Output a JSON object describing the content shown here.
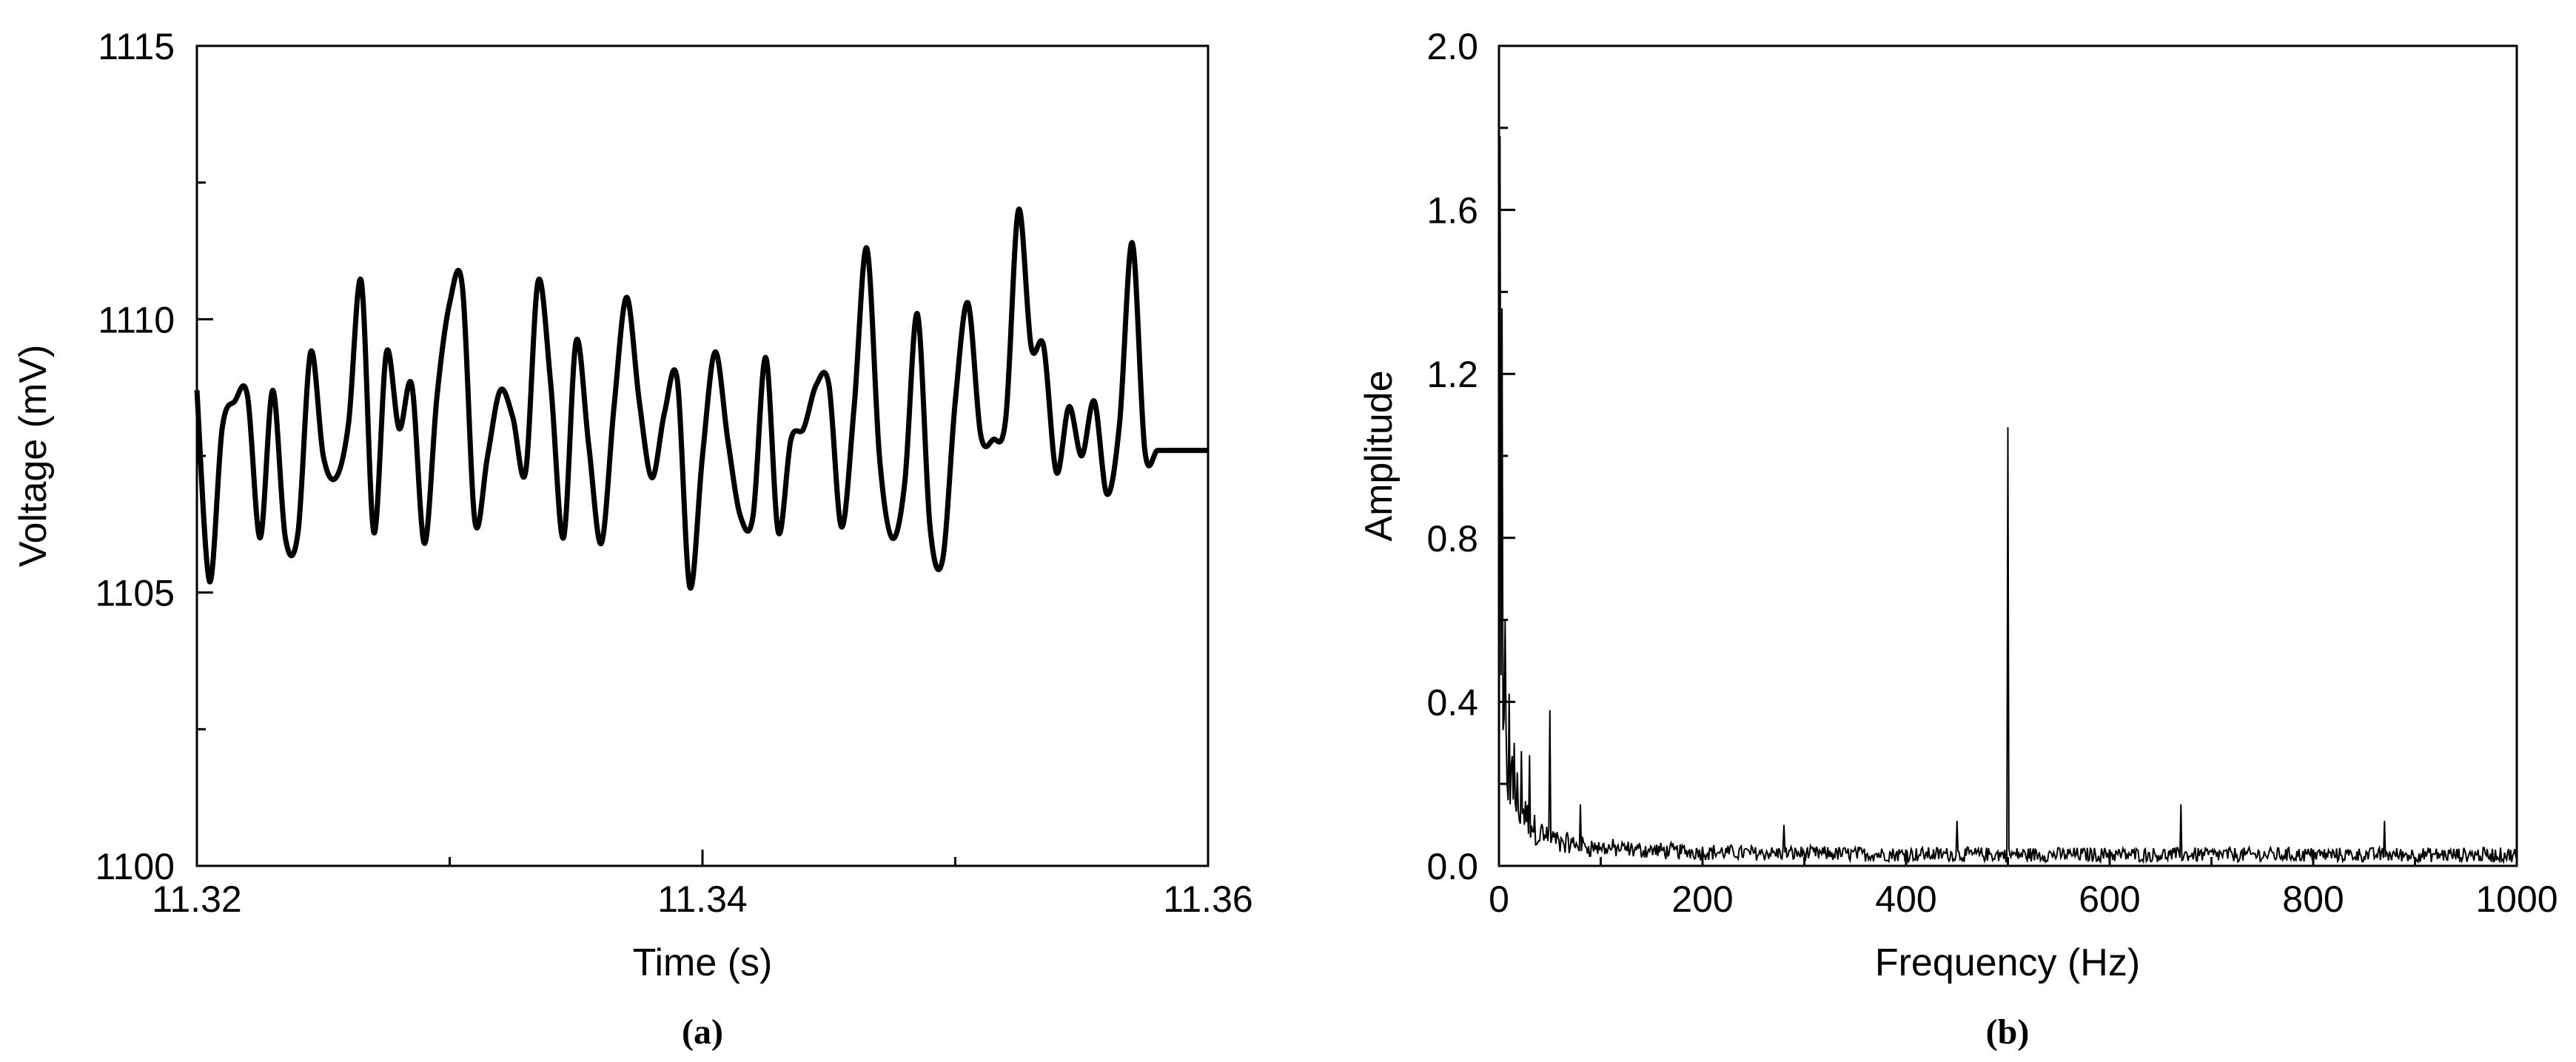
{
  "chart_data": [
    {
      "type": "line",
      "caption": "(a)",
      "xlabel": "Time (s)",
      "ylabel": "Voltage (mV)",
      "xlim": [
        11.32,
        11.36
      ],
      "ylim": [
        1100,
        1115
      ],
      "x_ticks": [
        "11.32",
        "11.34",
        "11.36"
      ],
      "y_ticks": [
        "1100",
        "1105",
        "1110",
        "1115"
      ],
      "line_color": "#000000",
      "x": [
        11.32,
        11.3205,
        11.321,
        11.3215,
        11.322,
        11.3225,
        11.323,
        11.3235,
        11.324,
        11.3245,
        11.325,
        11.3255,
        11.326,
        11.3265,
        11.327,
        11.3275,
        11.328,
        11.3285,
        11.329,
        11.3295,
        11.33,
        11.3305,
        11.331,
        11.3315,
        11.332,
        11.3325,
        11.333,
        11.3335,
        11.334,
        11.3345,
        11.335,
        11.3355,
        11.336,
        11.3365,
        11.337,
        11.3375,
        11.338,
        11.3385,
        11.339,
        11.3395,
        11.34,
        11.3405,
        11.341,
        11.3415,
        11.342,
        11.3425,
        11.343,
        11.3435,
        11.344,
        11.3445,
        11.345,
        11.3455,
        11.346,
        11.3465,
        11.347,
        11.3475,
        11.348,
        11.3485,
        11.349,
        11.3495,
        11.35,
        11.3505,
        11.351,
        11.3515,
        11.352,
        11.3525,
        11.353,
        11.3535,
        11.354,
        11.3545,
        11.355,
        11.3555,
        11.356,
        11.3565,
        11.357,
        11.3575,
        11.358,
        11.3585,
        11.359,
        11.3595,
        11.36
      ],
      "y": [
        1108.7,
        1105.2,
        1108.0,
        1108.5,
        1108.6,
        1106.0,
        1108.7,
        1106.0,
        1106.1,
        1109.4,
        1107.5,
        1107.1,
        1108.1,
        1110.7,
        1106.1,
        1109.4,
        1108.0,
        1108.8,
        1105.9,
        1108.6,
        1110.3,
        1110.6,
        1106.3,
        1107.5,
        1108.7,
        1108.2,
        1107.2,
        1110.7,
        1108.8,
        1106.0,
        1109.6,
        1107.7,
        1105.9,
        1108.4,
        1110.4,
        1108.5,
        1107.1,
        1108.3,
        1108.9,
        1105.1,
        1107.5,
        1109.4,
        1107.8,
        1106.4,
        1106.4,
        1109.3,
        1106.1,
        1107.8,
        1108.0,
        1108.8,
        1108.8,
        1106.2,
        1108.4,
        1111.3,
        1107.5,
        1106.0,
        1107.0,
        1110.1,
        1106.2,
        1105.6,
        1108.5,
        1110.3,
        1107.9,
        1107.8,
        1108.2,
        1112.0,
        1109.5,
        1109.5,
        1107.2,
        1108.4,
        1107.5,
        1108.5,
        1106.8,
        1108.1,
        1111.4,
        1107.6,
        1107.6,
        1107.6,
        1107.6,
        1107.6,
        1107.6
      ]
    },
    {
      "type": "line",
      "caption": "(b)",
      "xlabel": "Frequency (Hz)",
      "ylabel": "Amplitude",
      "xlim": [
        0,
        1000
      ],
      "ylim": [
        0.0,
        2.0
      ],
      "x_ticks": [
        "0",
        "200",
        "400",
        "600",
        "800",
        "1000"
      ],
      "y_ticks": [
        "0.0",
        "0.4",
        "0.8",
        "1.2",
        "1.6",
        "2.0"
      ],
      "line_color": "#000000",
      "peaks": [
        {
          "x": 1,
          "y": 1.78
        },
        {
          "x": 3,
          "y": 1.36
        },
        {
          "x": 6,
          "y": 0.6
        },
        {
          "x": 10,
          "y": 0.42
        },
        {
          "x": 15,
          "y": 0.3
        },
        {
          "x": 22,
          "y": 0.28
        },
        {
          "x": 30,
          "y": 0.27
        },
        {
          "x": 50,
          "y": 0.38
        },
        {
          "x": 80,
          "y": 0.15
        },
        {
          "x": 280,
          "y": 0.1
        },
        {
          "x": 450,
          "y": 0.11
        },
        {
          "x": 500,
          "y": 1.07
        },
        {
          "x": 670,
          "y": 0.15
        },
        {
          "x": 870,
          "y": 0.11
        }
      ],
      "noise_floor": 0.03
    }
  ]
}
